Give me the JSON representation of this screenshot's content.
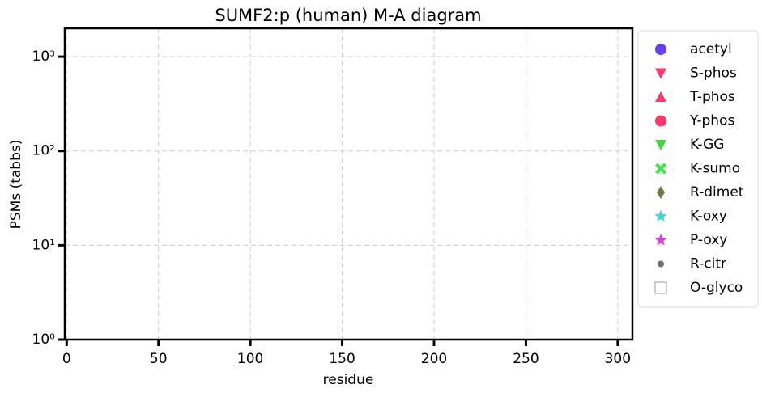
{
  "chart_data": {
    "type": "scatter",
    "title": "SUMF2:p (human) M-A diagram",
    "xlabel": "residue",
    "ylabel": "PSMs (tabbs)",
    "xlim": [
      -1,
      308
    ],
    "xticks": [
      0,
      50,
      100,
      150,
      200,
      250,
      300
    ],
    "ylim": [
      1,
      2000
    ],
    "yscale": "log",
    "yticks": [
      {
        "value": 1,
        "label": "10⁰"
      },
      {
        "value": 10,
        "label": "10¹"
      },
      {
        "value": 100,
        "label": "10²"
      },
      {
        "value": 1000,
        "label": "10³"
      }
    ],
    "grid": true,
    "legend": "outside right",
    "series": [
      {
        "name": "acetyl",
        "color": "#4b1fe6",
        "marker": "o",
        "x": [],
        "values": []
      },
      {
        "name": "S-phos",
        "color": "#f5174f",
        "marker": "v",
        "x": [],
        "values": []
      },
      {
        "name": "T-phos",
        "color": "#f5174f",
        "marker": "^",
        "x": [],
        "values": []
      },
      {
        "name": "Y-phos",
        "color": "#f5174f",
        "marker": "o",
        "x": [],
        "values": []
      },
      {
        "name": "K-GG",
        "color": "#22cc22",
        "marker": "v",
        "x": [],
        "values": []
      },
      {
        "name": "K-sumo",
        "color": "#22dd33",
        "marker": "X",
        "x": [],
        "values": []
      },
      {
        "name": "R-dimet",
        "color": "#5e5a2a",
        "marker": "d",
        "x": [],
        "values": []
      },
      {
        "name": "K-oxy",
        "color": "#22cccc",
        "marker": "*",
        "x": [],
        "values": []
      },
      {
        "name": "P-oxy",
        "color": "#cc22cc",
        "marker": "*",
        "x": [],
        "values": []
      },
      {
        "name": "R-citr",
        "color": "#555555",
        "marker": ".",
        "x": [],
        "values": []
      },
      {
        "name": "O-glyco",
        "color": "#999999",
        "marker": "s",
        "x": [],
        "values": []
      }
    ]
  }
}
